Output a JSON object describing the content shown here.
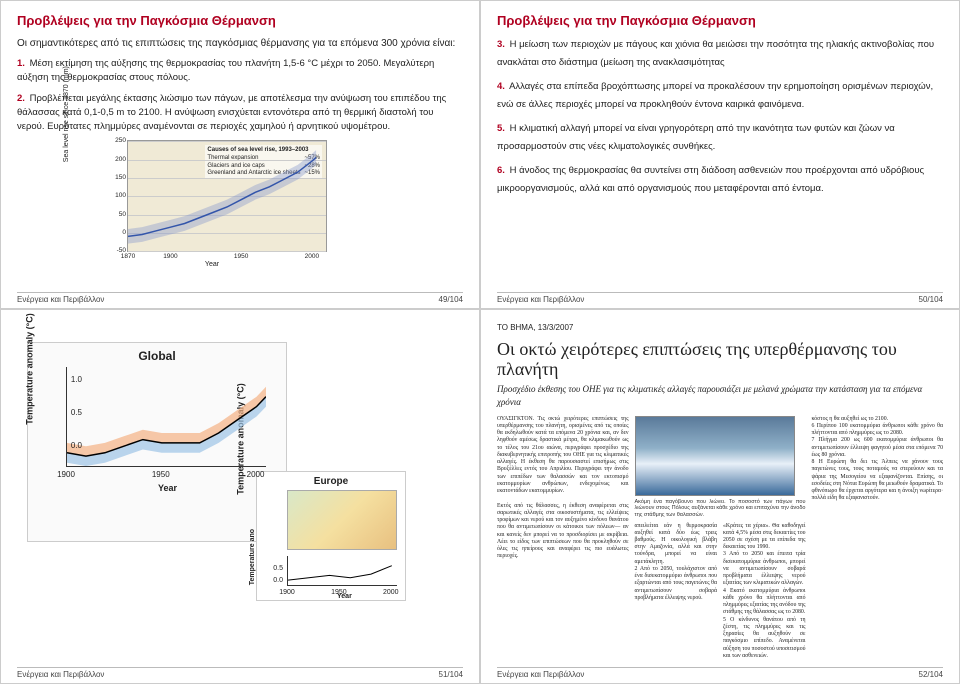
{
  "common": {
    "footer_source": "Ενέργεια και Περιβάλλον"
  },
  "slide49": {
    "title": "Προβλέψεις για την Παγκόσμια Θέρμανση",
    "intro": "Οι σημαντικότερες από τις επιπτώσεις της παγκόσμιας θέρμανσης για τα επόμενα 300 χρόνια είναι:",
    "items": [
      {
        "n": "1.",
        "t": "Μέση εκτίμηση της αύξησης της θερμοκρασίας του πλανήτη 1,5-6 °C μέχρι το 2050. Μεγαλύτερη αύξηση της θερμοκρασίας στους πόλους."
      },
      {
        "n": "2.",
        "t": "Προβλέπεται μεγάλης έκτασης λιώσιμο των πάγων, με αποτέλεσμα την ανύψωση του επιπέδου της θάλασσας κατά 0,1-0,5 m το 2100. Η ανύψωση ενισχύεται εντονότερα από τη θερμική διαστολή του νερού. Ευρύτατες πλημμύρες αναμένονται σε περιοχές χαμηλού ή αρνητικού υψομέτρου."
      }
    ],
    "page": "49/104",
    "sea_chart": {
      "ylabel": "Sea level rise since 1870 (mm)",
      "xlabel": "Year",
      "yticks": [
        -50,
        0,
        50,
        100,
        150,
        200,
        250
      ],
      "xticks": [
        1870,
        1900,
        1950,
        2000
      ],
      "ylim": [
        -50,
        250
      ],
      "xlim": [
        1870,
        2010
      ],
      "legend_head": "Causes of sea level rise, 1993–2003",
      "legend": [
        {
          "label": "Thermal expansion",
          "val": "~57%"
        },
        {
          "label": "Glaciers and ice caps",
          "val": "~28%"
        },
        {
          "label": "Greenland and Antarctic ice sheets",
          "val": "~15%"
        }
      ],
      "line_color": "#3355aa",
      "band_color": "#8899cc",
      "background_color": "#f0ead6",
      "points": [
        [
          1870,
          -10
        ],
        [
          1880,
          -5
        ],
        [
          1890,
          5
        ],
        [
          1900,
          15
        ],
        [
          1910,
          25
        ],
        [
          1920,
          40
        ],
        [
          1930,
          55
        ],
        [
          1940,
          70
        ],
        [
          1950,
          90
        ],
        [
          1960,
          110
        ],
        [
          1970,
          125
        ],
        [
          1980,
          145
        ],
        [
          1990,
          165
        ],
        [
          2000,
          195
        ],
        [
          2003,
          205
        ]
      ]
    }
  },
  "slide50": {
    "title": "Προβλέψεις για την Παγκόσμια Θέρμανση",
    "items": [
      {
        "n": "3.",
        "t": "Η μείωση των περιοχών με πάγους και χιόνια θα μειώσει την ποσότητα της ηλιακής ακτινοβολίας που ανακλάται στο διάστημα (μείωση της ανακλασιμότητας"
      },
      {
        "n": "4.",
        "t": "Αλλαγές στα επίπεδα βροχόπτωσης μπορεί να προκαλέσουν την ερημοποίηση ορισμένων περιοχών, ενώ σε άλλες περιοχές μπορεί να προκληθούν έντονα καιρικά φαινόμενα."
      },
      {
        "n": "5.",
        "t": "Η κλιματική αλλαγή μπορεί να είναι γρηγορότερη από την ικανότητα των φυτών και ζώων να προσαρμοστούν στις νέες κλιματολογικές συνθήκες."
      },
      {
        "n": "6.",
        "t": "Η άνοδος της θερμοκρασίας θα συντείνει στη διάδοση ασθενειών που προέρχονται από υδρόβιους μικροοργανισμούς, αλλά και από οργανισμούς που μεταφέρονται από έντομα."
      }
    ],
    "page": "50/104"
  },
  "slide51": {
    "page": "51/104",
    "global": {
      "title": "Global",
      "ylabel": "Temperature anomaly (°C)",
      "ylabel2": "Temperature anomaly (°C)",
      "xlabel": "Year",
      "yticks": [
        0.0,
        0.5,
        1.0
      ],
      "xticks": [
        1900,
        1950,
        2000
      ],
      "ylim": [
        -0.3,
        1.2
      ],
      "xlim": [
        1900,
        2005
      ],
      "line_color": "#000000",
      "band_color_upper": "#f4b183",
      "band_color_lower": "#9dc3e6",
      "points": [
        [
          1900,
          -0.1
        ],
        [
          1910,
          -0.15
        ],
        [
          1920,
          -0.1
        ],
        [
          1930,
          0.0
        ],
        [
          1940,
          0.1
        ],
        [
          1950,
          0.05
        ],
        [
          1960,
          0.05
        ],
        [
          1970,
          0.05
        ],
        [
          1980,
          0.2
        ],
        [
          1990,
          0.4
        ],
        [
          2000,
          0.6
        ],
        [
          2005,
          0.75
        ]
      ]
    },
    "europe": {
      "title": "Europe",
      "yticks": [
        0.0,
        0.5
      ],
      "xticks": [
        1900,
        1950,
        2000
      ],
      "xlabel": "Year",
      "ylabel": "Temperature ano",
      "points": [
        [
          1900,
          -0.1
        ],
        [
          1920,
          0.0
        ],
        [
          1940,
          0.1
        ],
        [
          1960,
          0.0
        ],
        [
          1980,
          0.15
        ],
        [
          2000,
          0.5
        ]
      ],
      "ylim": [
        -0.3,
        0.9
      ],
      "xlim": [
        1900,
        2005
      ]
    }
  },
  "slide52": {
    "page": "52/104",
    "paper": "ΤΟ ΒΗΜΑ, 13/3/2007",
    "headline": "Οι οκτώ χειρότερες επιπτώσεις της υπερθέρμανσης του πλανήτη",
    "subhead": "Προσχέδιο έκθεσης του ΟΗΕ για τις κλιματικές αλλαγές παρουσιάζει με μελανά χρώματα την κατάσταση για τα επόμενα χρόνια",
    "img_caption": "Ακόμη ένα παγόβουνο που λιώνει. Το ποσοστό των πάγων που λιώνουν στους Πόλους αυξάνεται κάθε χρόνο και επιταχύνει την άνοδο της στάθμης των θαλασσών.",
    "col1": "ΟΥΑΣΙΓΚΤΟΝ. Τις οκτώ χειρότερες επιπτώσεις της υπερθέρμανσης του πλανήτη, ορισμένες από τις οποίες θα εκδηλωθούν κατά τα επόμενα 20 χρόνια και, αν δεν ληφθούν αμέσως δραστικά μέτρα, θα κλιμακωθούν ως το τέλος του 21ου αιώνα, περιγράφει προσχέδιο της διακυβερνητικής επιτροπής του ΟΗΕ για τις κλιματικές αλλαγές. Η έκθεση θα παρουσιαστεί επισήμως στις Βρυξέλλες εντός του Απριλίου. Περιγράφει την άνοδο των επιπέδων των θαλασσών και τον εκτοπισμό εκατομμυρίων ανθρώπων, ενδεχομένως και εκατοντάδων εκατομμυρίων.\n\nΕκτός από τις θάλασσες, η έκθεση αναφέρεται στις σαρωτικές αλλαγές στα οικοσυστήματα, τις ελλείψεις τροφίμων και νερού και τον αυξημένο κίνδυνο θανάτου που θα αντιμετωπίσουν οι κάτοικοι των πόλεων— αν και κανείς δεν μπορεί να το προσδιορίσει με ακρίβεια. Λέει το είδος των επιπτώσεων που θα προκληθούν σε όλες τις ηπείρους και αναφέρει τις πιο ευάλωτες περιοχές.",
    "col2_top": "«Κράτες τα χέρια». Θα καθοδηγεί κατά 4,5% μέσα στις δεκαετίες του 2050 σε σχέση με τα επίπεδα της δεκαετίας του 1990.\n3 Από το 2050 και έπειτα τρία δισεκατομμύρια άνθρωποι, μπορεί να αντιμετωπίσουν σοβαρά προβλήματα έλλειψης νερού εξαιτίας των κλιματικών αλλαγών.\n4 Εκατό εκατομμύρια άνθρωποι κάθε χρόνο θα πλήττονται από πλημμύρες εξαιτίας της ανόδου της στάθμης της θάλασσας ως το 2080.\n5 Ο κίνδυνος θανάτου από τη ζέστη, τις πλημμύρες και τις ξηρασίες θα αυξηθούν σε παγκόσμιο επίπεδο. Αναμένεται αύξηση του ποσοστού υποσιτισμού και των ασθενειών.",
    "col2_btm": "απειλείται εάν η θερμοκρασία αυξηθεί κατά δύο έως τρεις βαθμούς. Η οικολογική βλάβη στην Αμαζονία, αλλά και στην τούνδρα, μπορεί να είναι αμετάκλητη.\n2 Από το 2050, τουλάχιστον από ένα δισεκατομμύριο άνθρωποι που εξαρτώνται από τους παγετώνες θα αντιμετωπίσουν σοβαρά προβλήματα έλλειψης νερού.",
    "col3": "κόστος η θα αυξηθεί ως το 2100.\n6 Περίπου 100 εκατομμύρια άνθρωποι κάθε χρόνο θα πλήττονται από πλημμύρες ως το 2080.\n7 Πλήγμα 200 ως 600 εκατομμύρια άνθρωποι θα αντιμετωπίσουν έλλειψη φαγητού μέσα στα επόμενα 70 έως 80 χρόνια.\n8 Η Ευρώπη θα δει τις Άλπεις να χάνουν τους παγετώνες τους, τους ποταμούς να στερεύουν και τα ψάρια της Μεσογείου να εξαφανίζονται. Επίσης, οι εσοδείες στη Νότια Ευρώπη θα μειωθούν δραματικά. Το φθινόπωρο θα έρχεται αργότερα και η άνοιξη νωρίτερα· πολλά είδη θα εξαφανιστούν."
  }
}
